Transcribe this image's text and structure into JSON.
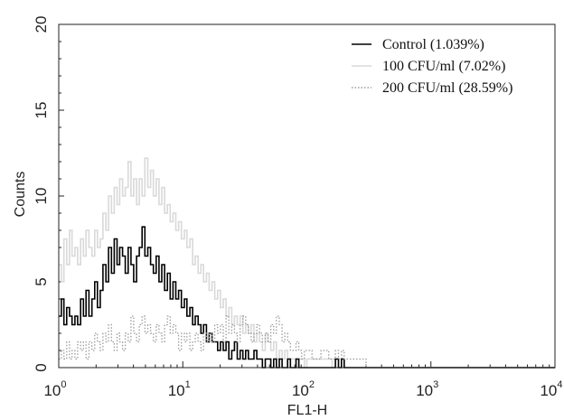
{
  "chart_data": {
    "type": "line",
    "title": "",
    "xlabel": "FL1-H",
    "ylabel": "Counts",
    "xscale": "log",
    "xlim": [
      1,
      10000
    ],
    "ylim": [
      0,
      20
    ],
    "x_ticks": [
      1,
      10,
      100,
      1000,
      10000
    ],
    "x_tick_labels": [
      {
        "base": "10",
        "exp": "0"
      },
      {
        "base": "10",
        "exp": "1"
      },
      {
        "base": "10",
        "exp": "2"
      },
      {
        "base": "10",
        "exp": "3"
      },
      {
        "base": "10",
        "exp": "4"
      }
    ],
    "y_ticks": [
      0,
      5,
      10,
      15,
      20
    ],
    "y_tick_labels": [
      "0",
      "5",
      "10",
      "15",
      "20"
    ],
    "grid": false,
    "legend": "top-right",
    "series": [
      {
        "name": "100 CFU/ml (7.02%)",
        "color": "#d9d9d9",
        "style": "solid",
        "x": [
          1.0,
          1.05,
          1.1,
          1.16,
          1.22,
          1.28,
          1.35,
          1.42,
          1.5,
          1.58,
          1.66,
          1.75,
          1.85,
          1.95,
          2.05,
          2.16,
          2.27,
          2.4,
          2.52,
          2.66,
          2.8,
          2.95,
          3.1,
          3.27,
          3.44,
          3.63,
          3.82,
          4.02,
          4.24,
          4.46,
          4.7,
          4.95,
          5.22,
          5.5,
          5.79,
          6.1,
          6.43,
          6.77,
          7.13,
          7.51,
          7.91,
          8.33,
          8.78,
          9.25,
          9.74,
          10.3,
          10.8,
          11.4,
          12.0,
          12.6,
          13.3,
          14.0,
          14.7,
          15.5,
          16.3,
          17.2,
          18.1,
          19.1,
          20.1,
          21.2,
          22.3,
          23.5,
          24.8,
          26.1,
          27.5,
          29.0,
          30.5,
          32.1,
          33.8,
          35.6,
          37.5,
          39.5,
          41.6,
          43.8,
          46.2,
          48.6,
          51.2,
          54.0,
          56.8,
          59.9,
          63.1,
          66.4,
          70.0,
          73.7,
          77.6,
          81.8,
          86.1,
          90.7,
          95.6,
          100,
          110,
          120,
          140,
          160,
          180,
          190,
          200,
          300,
          500,
          1000,
          3000,
          10000
        ],
        "y": [
          6.0,
          5.0,
          7.5,
          6.0,
          8.0,
          6.5,
          7.0,
          6.0,
          7.5,
          6.5,
          8.0,
          7.0,
          6.5,
          8.0,
          7.0,
          7.5,
          9.0,
          8.0,
          10.0,
          9.0,
          10.5,
          9.5,
          11.0,
          10.0,
          10.5,
          12.0,
          10.0,
          11.0,
          9.5,
          11.0,
          10.0,
          12.2,
          10.5,
          11.5,
          10.0,
          11.0,
          9.5,
          10.5,
          9.0,
          9.5,
          8.5,
          9.0,
          8.0,
          8.5,
          7.5,
          8.0,
          7.0,
          7.5,
          6.0,
          6.5,
          5.5,
          6.0,
          5.0,
          5.5,
          4.5,
          5.0,
          4.0,
          4.5,
          3.5,
          4.0,
          3.0,
          3.5,
          2.5,
          3.0,
          2.5,
          3.0,
          2.0,
          2.5,
          2.0,
          2.5,
          1.5,
          2.0,
          1.5,
          1.0,
          2.0,
          1.5,
          1.0,
          1.5,
          0.5,
          1.0,
          0.5,
          1.0,
          0.5,
          0.5,
          0.5,
          0.0,
          0.5,
          0.5,
          0.0,
          0.5,
          0.5,
          0.5,
          0.5,
          0.0,
          0.5,
          0.5,
          0.0,
          0.0,
          0.0,
          0.0,
          0.0,
          0.0
        ]
      },
      {
        "name": "Control (1.039%)",
        "color": "#000000",
        "style": "solid",
        "x": [
          1.0,
          1.05,
          1.1,
          1.16,
          1.22,
          1.28,
          1.35,
          1.42,
          1.5,
          1.58,
          1.66,
          1.75,
          1.85,
          1.95,
          2.05,
          2.16,
          2.27,
          2.4,
          2.52,
          2.66,
          2.8,
          2.95,
          3.1,
          3.27,
          3.44,
          3.63,
          3.82,
          4.02,
          4.24,
          4.46,
          4.7,
          4.95,
          5.22,
          5.5,
          5.79,
          6.1,
          6.43,
          6.77,
          7.13,
          7.51,
          7.91,
          8.33,
          8.78,
          9.25,
          9.74,
          10.3,
          10.8,
          11.4,
          12.0,
          12.6,
          13.3,
          14.0,
          14.7,
          15.5,
          16.3,
          17.2,
          18.1,
          19.1,
          20.1,
          21.2,
          22.3,
          23.5,
          24.8,
          26.1,
          27.5,
          29.0,
          30.5,
          32.1,
          33.8,
          35.6,
          37.5,
          39.5,
          41.6,
          43.8,
          46.2,
          48.6,
          51.2,
          54.0,
          56.8,
          59.9,
          63.1,
          66.4,
          70.0,
          73.7,
          77.6,
          81.8,
          86.1,
          90.7,
          95.6,
          100,
          110,
          140,
          170,
          180,
          190,
          200,
          300,
          1000,
          10000
        ],
        "y": [
          3.0,
          4.0,
          2.5,
          3.5,
          3.0,
          2.5,
          3.0,
          2.5,
          4.0,
          3.0,
          4.5,
          3.0,
          4.0,
          5.0,
          3.5,
          4.5,
          6.0,
          5.0,
          7.0,
          5.5,
          7.5,
          6.0,
          7.0,
          6.5,
          5.5,
          7.0,
          6.0,
          5.0,
          6.5,
          7.0,
          8.2,
          6.5,
          7.0,
          6.0,
          5.5,
          6.5,
          5.0,
          6.0,
          4.5,
          5.5,
          4.0,
          5.0,
          4.0,
          4.5,
          3.5,
          4.0,
          3.0,
          3.5,
          2.5,
          3.0,
          2.5,
          2.0,
          2.5,
          1.5,
          2.0,
          1.5,
          1.5,
          1.0,
          1.5,
          1.0,
          1.5,
          0.5,
          1.0,
          1.5,
          0.5,
          1.0,
          0.5,
          1.0,
          0.5,
          0.5,
          1.0,
          0.5,
          0.5,
          0.0,
          0.5,
          0.5,
          0.0,
          0.5,
          0.0,
          0.5,
          0.0,
          0.0,
          0.5,
          0.0,
          0.0,
          0.5,
          0.0,
          0.0,
          0.0,
          0.0,
          0.0,
          0.0,
          0.5,
          0.0,
          0.5,
          0.0,
          0.0,
          0.0,
          0.0
        ]
      },
      {
        "name": "200 CFU/ml (28.59%)",
        "color": "#9a9a9a",
        "style": "dotted",
        "x": [
          1.0,
          1.05,
          1.1,
          1.16,
          1.22,
          1.28,
          1.35,
          1.42,
          1.5,
          1.58,
          1.66,
          1.75,
          1.85,
          1.95,
          2.05,
          2.16,
          2.27,
          2.4,
          2.52,
          2.66,
          2.8,
          2.95,
          3.1,
          3.27,
          3.44,
          3.63,
          3.82,
          4.02,
          4.24,
          4.46,
          4.7,
          4.95,
          5.22,
          5.5,
          5.79,
          6.1,
          6.43,
          6.77,
          7.13,
          7.51,
          7.91,
          8.33,
          8.78,
          9.25,
          9.74,
          10.3,
          10.8,
          11.4,
          12.0,
          12.6,
          13.3,
          14.0,
          14.7,
          15.5,
          16.3,
          17.2,
          18.1,
          19.1,
          20.1,
          21.2,
          22.3,
          23.5,
          24.8,
          26.1,
          27.5,
          29.0,
          30.5,
          32.1,
          33.8,
          35.6,
          37.5,
          39.5,
          41.6,
          43.8,
          46.2,
          48.6,
          51.2,
          54.0,
          56.8,
          59.9,
          63.1,
          66.4,
          70.0,
          73.7,
          77.6,
          81.8,
          86.1,
          90.7,
          95.6,
          100,
          110,
          130,
          150,
          170,
          180,
          190,
          200,
          300,
          1000,
          10000
        ],
        "y": [
          0.5,
          1.0,
          0.5,
          1.5,
          0.5,
          1.0,
          0.5,
          1.5,
          1.0,
          1.5,
          0.5,
          1.5,
          1.0,
          2.0,
          1.5,
          1.0,
          2.0,
          1.5,
          2.5,
          1.5,
          1.0,
          2.0,
          1.5,
          1.0,
          2.0,
          1.5,
          3.0,
          2.0,
          1.5,
          2.5,
          3.0,
          2.0,
          2.5,
          2.0,
          1.5,
          2.5,
          2.0,
          1.5,
          2.5,
          3.0,
          2.0,
          2.5,
          2.0,
          1.0,
          2.0,
          1.5,
          2.0,
          1.0,
          1.5,
          2.0,
          1.5,
          1.0,
          2.0,
          1.5,
          2.0,
          1.5,
          2.5,
          2.0,
          2.5,
          1.5,
          3.0,
          2.0,
          2.5,
          2.0,
          1.5,
          2.5,
          3.0,
          2.5,
          2.0,
          1.5,
          2.0,
          2.5,
          2.0,
          1.5,
          2.0,
          1.5,
          2.5,
          2.0,
          3.0,
          2.5,
          1.5,
          2.0,
          1.5,
          1.0,
          1.0,
          1.5,
          1.0,
          0.5,
          1.0,
          1.0,
          0.5,
          1.0,
          0.5,
          1.0,
          0.5,
          1.0,
          0.5,
          0.0,
          0.0,
          0.0
        ]
      }
    ]
  }
}
